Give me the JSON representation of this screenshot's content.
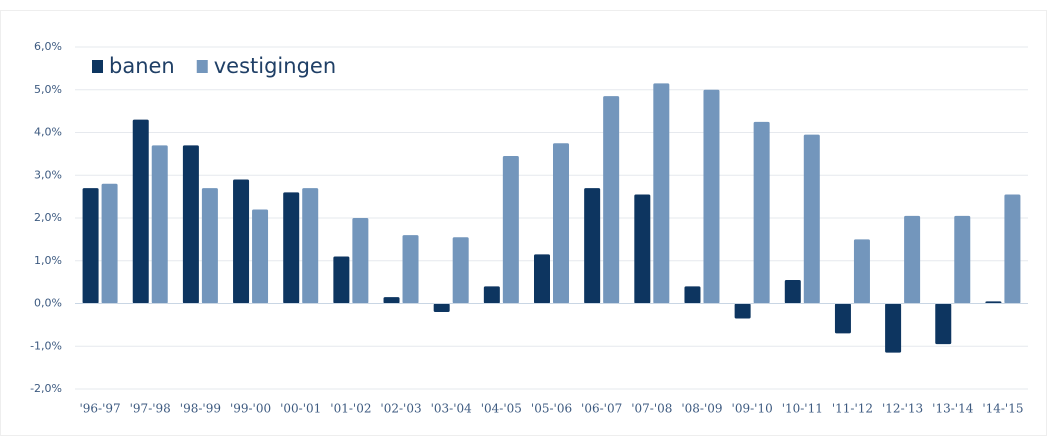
{
  "chart_data": {
    "type": "bar",
    "categories": [
      "'96-'97",
      "'97-'98",
      "'98-'99",
      "'99-'00",
      "'00-'01",
      "'01-'02",
      "'02-'03",
      "'03-'04",
      "'04-'05",
      "'05-'06",
      "'06-'07",
      "'07-'08",
      "'08-'09",
      "'09-'10",
      "'10-'11",
      "'11-'12",
      "'12-'13",
      "'13-'14",
      "'14-'15"
    ],
    "series": [
      {
        "name": "banen",
        "color": "#0d3560",
        "values": [
          2.7,
          4.3,
          3.7,
          2.9,
          2.6,
          1.1,
          0.15,
          -0.2,
          0.4,
          1.15,
          2.7,
          2.55,
          0.4,
          -0.35,
          0.55,
          -0.7,
          -1.15,
          -0.95,
          0.05
        ]
      },
      {
        "name": "vestigingen",
        "color": "#7396bc",
        "values": [
          2.8,
          3.7,
          2.7,
          2.2,
          2.7,
          2.0,
          1.6,
          1.55,
          3.45,
          3.75,
          4.85,
          5.15,
          5.0,
          4.25,
          3.95,
          1.5,
          2.05,
          2.05,
          2.55
        ]
      }
    ],
    "ylim": [
      -2,
      6
    ],
    "yticks": [
      {
        "value": -2,
        "label": "-2,0%"
      },
      {
        "value": -1,
        "label": "-1,0%"
      },
      {
        "value": 0,
        "label": "0,0%"
      },
      {
        "value": 1,
        "label": "1,0%"
      },
      {
        "value": 2,
        "label": "2,0%"
      },
      {
        "value": 3,
        "label": "3,0%"
      },
      {
        "value": 4,
        "label": "4,0%"
      },
      {
        "value": 5,
        "label": "5,0%"
      },
      {
        "value": 6,
        "label": "6,0%"
      }
    ],
    "grid": true,
    "legend": "top-left"
  }
}
